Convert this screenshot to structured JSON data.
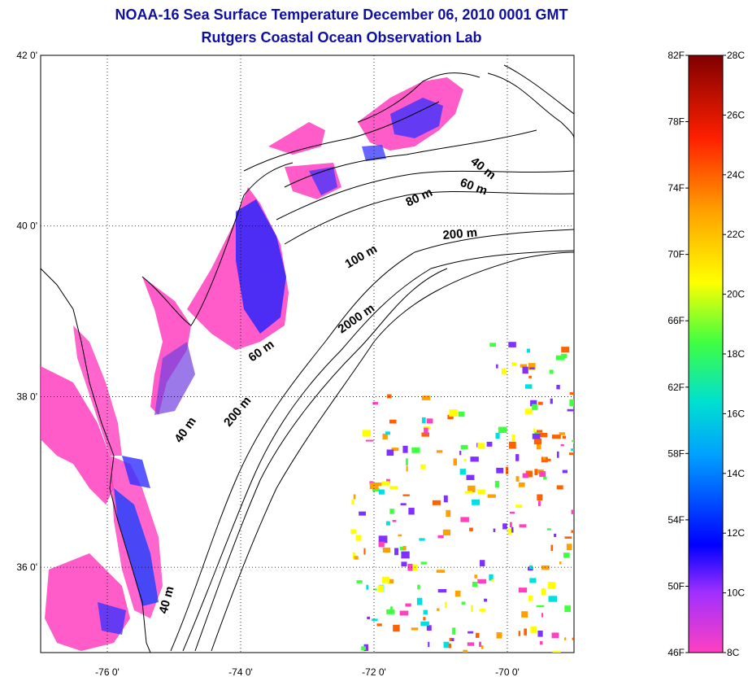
{
  "title_line1": "NOAA-16 Sea Surface Temperature December 06, 2010 0001 GMT",
  "title_line2": "Rutgers Coastal Ocean Observation Lab",
  "map": {
    "lat_ticks": [
      "42 0'",
      "40 0'",
      "38 0'",
      "36 0'"
    ],
    "lon_ticks": [
      "-76 0'",
      "-74 0'",
      "-72 0'",
      "-70 0'"
    ],
    "lat_values": [
      42,
      40,
      38,
      36
    ],
    "lon_values": [
      -76,
      -74,
      -72,
      -70
    ],
    "lat_range": [
      35,
      42
    ],
    "lon_range": [
      -77,
      -69
    ],
    "grid": "dotted",
    "contour_labels": [
      "40 m",
      "60 m",
      "80 m",
      "200 m",
      "100 m",
      "2000 m",
      "60 m",
      "40 m",
      "200 m",
      "40 m"
    ],
    "land_color": "#ffffff",
    "ocean_cold_color": "#ff3fbf",
    "ocean_cool_color": "#1020ff"
  },
  "colorbar": {
    "f_labels": [
      "82F",
      "78F",
      "74F",
      "70F",
      "66F",
      "62F",
      "58F",
      "54F",
      "50F",
      "46F"
    ],
    "c_labels": [
      "28C",
      "26C",
      "24C",
      "22C",
      "20C",
      "18C",
      "16C",
      "14C",
      "12C",
      "10C",
      "8C"
    ],
    "f_range": [
      46,
      82
    ],
    "c_range": [
      8,
      28
    ],
    "colors": [
      "#ff40c0",
      "#c030ff",
      "#1010ff",
      "#00a0ff",
      "#00e0e0",
      "#40ff40",
      "#ffff00",
      "#ffa000",
      "#ff2000",
      "#800000"
    ]
  }
}
